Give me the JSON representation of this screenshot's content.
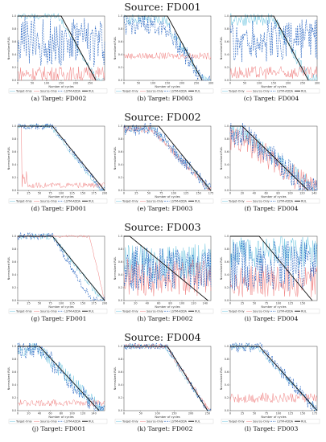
{
  "figure": {
    "sections": [
      {
        "title": "Source: FD001",
        "captions": [
          "(a) Target: FD002",
          "(b) Target: FD003",
          "(c) Target: FD004"
        ]
      },
      {
        "title": "Source: FD002",
        "captions": [
          "(d) Target: FD001",
          "(e) Target: FD003",
          "(f) Target: FD004"
        ]
      },
      {
        "title": "Source: FD003",
        "captions": [
          "(g) Target: FD001",
          "(h) Target: FD002",
          "(i) Target: FD004"
        ]
      },
      {
        "title": "Source: FD004",
        "captions": [
          "(j) Target: FD001",
          "(k) Target: FD002",
          "(l) Target: FD003"
        ]
      }
    ],
    "xlabel": "Number of cycles",
    "ylabel": "Normalized RUL",
    "legend": [
      "Target-Only",
      "Source-Only",
      "LSTM-ADDA",
      "RUL"
    ],
    "colors": {
      "Target-Only": "#6cc5e0",
      "Source-Only": "#f08080",
      "LSTM-ADDA": "#1f5fbf",
      "RUL": "#111111"
    }
  },
  "chart_data": [
    {
      "type": "line",
      "panel": "a",
      "xlim": [
        0,
        300
      ],
      "xticks": [
        0,
        50,
        100,
        150,
        200,
        250
      ],
      "ylim": [
        0,
        1
      ],
      "yticks": [
        0.0,
        0.2,
        0.4,
        0.6,
        0.8,
        1.0
      ],
      "rul": {
        "x": [
          0,
          150,
          270
        ],
        "y": [
          1.0,
          1.0,
          0.0
        ]
      },
      "series": [
        {
          "name": "Target-Only",
          "style": "plateau-fall",
          "level": 1.0,
          "noise": 0.05,
          "fall": [
            140,
            275
          ]
        },
        {
          "name": "Source-Only",
          "style": "noisy",
          "level": 0.1,
          "noise": 0.12
        },
        {
          "name": "LSTM-ADDA",
          "style": "noisy",
          "level": 0.6,
          "noise": 0.4
        }
      ]
    },
    {
      "type": "line",
      "panel": "b",
      "xlim": [
        0,
        300
      ],
      "xticks": [
        0,
        50,
        100,
        150,
        200,
        250,
        300
      ],
      "ylim": [
        0,
        1
      ],
      "yticks": [
        0.0,
        0.2,
        0.4,
        0.6,
        0.8,
        1.0
      ],
      "rul": {
        "x": [
          0,
          150,
          270
        ],
        "y": [
          1.0,
          1.0,
          0.0
        ]
      },
      "series": [
        {
          "name": "Target-Only",
          "style": "plateau-fall",
          "level": 0.95,
          "noise": 0.08,
          "fall": [
            140,
            275
          ]
        },
        {
          "name": "Source-Only",
          "style": "noisy",
          "level": 0.38,
          "noise": 0.05
        },
        {
          "name": "LSTM-ADDA",
          "style": "plateau-fall",
          "level": 0.85,
          "noise": 0.15,
          "fall": [
            140,
            275
          ]
        }
      ]
    },
    {
      "type": "line",
      "panel": "c",
      "xlim": [
        0,
        300
      ],
      "xticks": [
        0,
        50,
        100,
        150,
        200,
        250,
        300
      ],
      "ylim": [
        0,
        1
      ],
      "yticks": [
        0.0,
        0.2,
        0.4,
        0.6,
        0.8,
        1.0
      ],
      "rul": {
        "x": [
          0,
          150,
          270
        ],
        "y": [
          1.0,
          1.0,
          0.0
        ]
      },
      "series": [
        {
          "name": "Target-Only",
          "style": "plateau-fall",
          "level": 0.95,
          "noise": 0.1,
          "fall": [
            150,
            275
          ]
        },
        {
          "name": "Source-Only",
          "style": "noisy",
          "level": 0.12,
          "noise": 0.1
        },
        {
          "name": "LSTM-ADDA",
          "style": "noisy",
          "level": 0.6,
          "noise": 0.35
        }
      ]
    },
    {
      "type": "line",
      "panel": "d",
      "xlim": [
        0,
        200
      ],
      "xticks": [
        0,
        25,
        50,
        75,
        100,
        125,
        150,
        175,
        200
      ],
      "ylim": [
        0,
        1
      ],
      "yticks": [
        0.0,
        0.2,
        0.4,
        0.6,
        0.8,
        1.0
      ],
      "rul": {
        "x": [
          0,
          80,
          200
        ],
        "y": [
          1.0,
          1.0,
          0.0
        ]
      },
      "series": [
        {
          "name": "Target-Only",
          "style": "plateau-fall",
          "level": 1.0,
          "noise": 0.03,
          "fall": [
            75,
            190
          ]
        },
        {
          "name": "Source-Only",
          "style": "drop",
          "level": 1.0,
          "noise": 0.08,
          "drop": 10,
          "low": 0.08
        },
        {
          "name": "LSTM-ADDA",
          "style": "plateau-fall",
          "level": 1.0,
          "noise": 0.05,
          "fall": [
            80,
            195
          ]
        }
      ]
    },
    {
      "type": "line",
      "panel": "e",
      "xlim": [
        0,
        175
      ],
      "xticks": [
        0,
        25,
        50,
        75,
        100,
        125,
        150,
        175
      ],
      "ylim": [
        0,
        1
      ],
      "yticks": [
        0.0,
        0.2,
        0.4,
        0.6,
        0.8,
        1.0
      ],
      "rul": {
        "x": [
          0,
          70,
          175
        ],
        "y": [
          1.0,
          1.0,
          0.0
        ]
      },
      "series": [
        {
          "name": "Target-Only",
          "style": "plateau-fall",
          "level": 0.95,
          "noise": 0.05,
          "fall": [
            60,
            175
          ]
        },
        {
          "name": "Source-Only",
          "style": "plateau-fall",
          "level": 0.95,
          "noise": 0.05,
          "fall": [
            55,
            175
          ]
        },
        {
          "name": "LSTM-ADDA",
          "style": "plateau-fall",
          "level": 0.95,
          "noise": 0.1,
          "fall": [
            60,
            175
          ]
        }
      ]
    },
    {
      "type": "line",
      "panel": "f",
      "xlim": [
        0,
        145
      ],
      "xticks": [
        0,
        20,
        40,
        60,
        80,
        100,
        120,
        140
      ],
      "ylim": [
        0,
        1
      ],
      "yticks": [
        0.0,
        0.2,
        0.4,
        0.6,
        0.8,
        1.0
      ],
      "rul": {
        "x": [
          0,
          20,
          130
        ],
        "y": [
          1.0,
          1.0,
          0.0
        ]
      },
      "series": [
        {
          "name": "Target-Only",
          "style": "plateau-fall",
          "level": 0.9,
          "noise": 0.12,
          "fall": [
            20,
            145
          ]
        },
        {
          "name": "Source-Only",
          "style": "plateau-fall",
          "level": 0.8,
          "noise": 0.2,
          "fall": [
            20,
            140
          ]
        },
        {
          "name": "LSTM-ADDA",
          "style": "plateau-fall",
          "level": 0.9,
          "noise": 0.2,
          "fall": [
            20,
            135
          ]
        }
      ]
    },
    {
      "type": "line",
      "panel": "g",
      "xlim": [
        0,
        200
      ],
      "xticks": [
        0,
        25,
        50,
        75,
        100,
        125,
        150,
        175,
        200
      ],
      "ylim": [
        0,
        1
      ],
      "yticks": [
        0.0,
        0.2,
        0.4,
        0.6,
        0.8,
        1.0
      ],
      "rul": {
        "x": [
          0,
          80,
          200
        ],
        "y": [
          1.0,
          1.0,
          0.0
        ]
      },
      "series": [
        {
          "name": "Target-Only",
          "style": "plateau-fall",
          "level": 1.0,
          "noise": 0.05,
          "fall": [
            80,
            195
          ]
        },
        {
          "name": "Source-Only",
          "style": "plateau-fall",
          "level": 1.0,
          "noise": 0.02,
          "fall": [
            165,
            200
          ]
        },
        {
          "name": "LSTM-ADDA",
          "style": "plateau-fall",
          "level": 1.0,
          "noise": 0.06,
          "fall": [
            80,
            170
          ]
        }
      ]
    },
    {
      "type": "line",
      "panel": "h",
      "xlim": [
        0,
        150
      ],
      "xticks": [
        0,
        20,
        40,
        60,
        80,
        100,
        120,
        140
      ],
      "ylim": [
        0,
        1
      ],
      "yticks": [
        0.0,
        0.2,
        0.4,
        0.6,
        0.8,
        1.0
      ],
      "rul": {
        "x": [
          0,
          10,
          145
        ],
        "y": [
          1.0,
          1.0,
          0.0
        ]
      },
      "series": [
        {
          "name": "Target-Only",
          "style": "noisy",
          "level": 0.6,
          "noise": 0.3
        },
        {
          "name": "Source-Only",
          "style": "noisy",
          "level": 0.35,
          "noise": 0.3
        },
        {
          "name": "LSTM-ADDA",
          "style": "noisy",
          "level": 0.5,
          "noise": 0.35
        }
      ]
    },
    {
      "type": "line",
      "panel": "i",
      "xlim": [
        0,
        180
      ],
      "xticks": [
        0,
        25,
        50,
        75,
        100,
        125,
        150
      ],
      "ylim": [
        0,
        1
      ],
      "yticks": [
        0.0,
        0.2,
        0.4,
        0.6,
        0.8,
        1.0
      ],
      "rul": {
        "x": [
          0,
          60,
          170
        ],
        "y": [
          1.0,
          1.0,
          0.0
        ]
      },
      "series": [
        {
          "name": "Target-Only",
          "style": "noisy",
          "level": 0.75,
          "noise": 0.25
        },
        {
          "name": "Source-Only",
          "style": "noisy",
          "level": 0.3,
          "noise": 0.25
        },
        {
          "name": "LSTM-ADDA",
          "style": "noisy",
          "level": 0.55,
          "noise": 0.4
        }
      ]
    },
    {
      "type": "line",
      "panel": "j",
      "xlim": [
        0,
        160
      ],
      "xticks": [
        0,
        20,
        40,
        60,
        80,
        100,
        120,
        140
      ],
      "ylim": [
        0,
        1
      ],
      "yticks": [
        0.0,
        0.2,
        0.4,
        0.6,
        0.8,
        1.0
      ],
      "rul": {
        "x": [
          0,
          40,
          150
        ],
        "y": [
          1.0,
          1.0,
          0.0
        ]
      },
      "series": [
        {
          "name": "Target-Only",
          "style": "plateau-fall",
          "level": 0.95,
          "noise": 0.12,
          "fall": [
            40,
            155
          ]
        },
        {
          "name": "Source-Only",
          "style": "noisy",
          "level": 0.12,
          "noise": 0.05
        },
        {
          "name": "LSTM-ADDA",
          "style": "plateau-fall",
          "level": 0.95,
          "noise": 0.15,
          "fall": [
            40,
            150
          ]
        }
      ]
    },
    {
      "type": "line",
      "panel": "k",
      "xlim": [
        0,
        260
      ],
      "xticks": [
        0,
        50,
        100,
        150,
        200,
        250
      ],
      "ylim": [
        0,
        1
      ],
      "yticks": [
        0.0,
        0.2,
        0.4,
        0.6,
        0.8,
        1.0
      ],
      "rul": {
        "x": [
          0,
          130,
          250
        ],
        "y": [
          1.0,
          1.0,
          0.0
        ]
      },
      "series": [
        {
          "name": "Target-Only",
          "style": "plateau-fall",
          "level": 1.0,
          "noise": 0.04,
          "fall": [
            120,
            250
          ]
        },
        {
          "name": "Source-Only",
          "style": "plateau-fall",
          "level": 1.0,
          "noise": 0.04,
          "fall": [
            125,
            255
          ]
        },
        {
          "name": "LSTM-ADDA",
          "style": "plateau-fall",
          "level": 1.0,
          "noise": 0.05,
          "fall": [
            128,
            250
          ]
        }
      ]
    },
    {
      "type": "line",
      "panel": "l",
      "xlim": [
        0,
        180
      ],
      "xticks": [
        0,
        25,
        50,
        75,
        100,
        125,
        150,
        175
      ],
      "ylim": [
        0,
        1
      ],
      "yticks": [
        0.0,
        0.2,
        0.4,
        0.6,
        0.8,
        1.0
      ],
      "rul": {
        "x": [
          0,
          60,
          180
        ],
        "y": [
          1.0,
          1.0,
          0.0
        ]
      },
      "series": [
        {
          "name": "Target-Only",
          "style": "plateau-fall",
          "level": 1.0,
          "noise": 0.05,
          "fall": [
            55,
            180
          ]
        },
        {
          "name": "Source-Only",
          "style": "noisy",
          "level": 0.2,
          "noise": 0.08
        },
        {
          "name": "LSTM-ADDA",
          "style": "plateau-fall",
          "level": 1.0,
          "noise": 0.1,
          "fall": [
            60,
            178
          ]
        }
      ]
    }
  ]
}
